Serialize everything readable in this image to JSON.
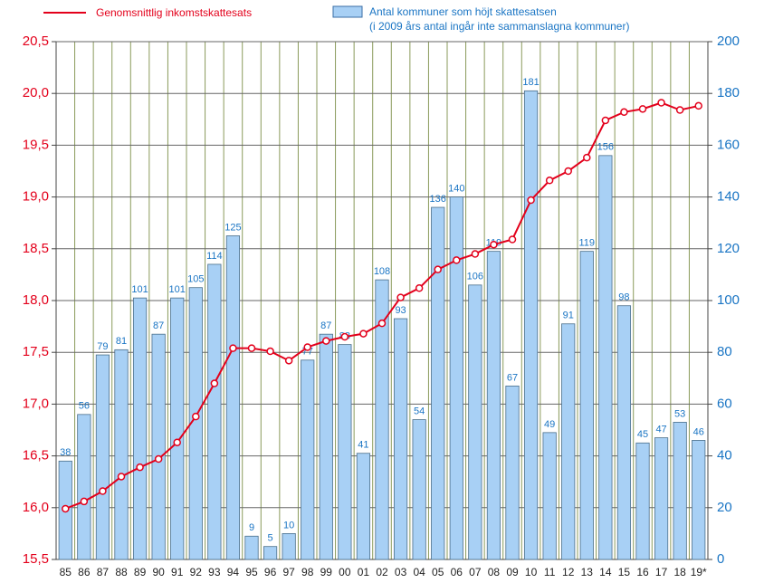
{
  "chart_data": {
    "type": "bar",
    "categories": [
      "85",
      "86",
      "87",
      "88",
      "89",
      "90",
      "91",
      "92",
      "93",
      "94",
      "95",
      "96",
      "97",
      "98",
      "99",
      "00",
      "01",
      "02",
      "03",
      "04",
      "05",
      "06",
      "07",
      "08",
      "09",
      "10",
      "11",
      "12",
      "13",
      "14",
      "15",
      "16",
      "17",
      "18",
      "19*"
    ],
    "series": [
      {
        "name": "Genomsnittlig inkomstskattesats",
        "type": "line",
        "axis": "y",
        "color": "#e3001b",
        "values": [
          15.99,
          16.06,
          16.16,
          16.3,
          16.39,
          16.47,
          16.63,
          16.88,
          17.2,
          17.54,
          17.54,
          17.51,
          17.42,
          17.55,
          17.61,
          17.65,
          17.68,
          17.78,
          18.03,
          18.12,
          18.3,
          18.39,
          18.45,
          18.54,
          18.59,
          18.97,
          19.16,
          19.25,
          19.38,
          19.74,
          19.82,
          19.85,
          19.91,
          19.84,
          19.88
        ]
      },
      {
        "name": "Antal kommuner som höjt skattesatsen",
        "type": "bar",
        "axis": "y2",
        "color": "#a8d0f5",
        "values": [
          38,
          56,
          79,
          81,
          101,
          87,
          101,
          105,
          114,
          125,
          9,
          5,
          10,
          77,
          87,
          83,
          41,
          108,
          93,
          54,
          136,
          140,
          106,
          119,
          67,
          181,
          49,
          91,
          119,
          156,
          98,
          45,
          47,
          53,
          46
        ]
      }
    ],
    "legend_note": "(i 2009 års antal ingår inte sammanslagna kommuner)",
    "ylim": [
      15.5,
      20.5
    ],
    "yticks": [
      {
        "value": 15.5,
        "label": "15,5"
      },
      {
        "value": 16.0,
        "label": "16,0"
      },
      {
        "value": 16.5,
        "label": "16,5"
      },
      {
        "value": 17.0,
        "label": "17,0"
      },
      {
        "value": 17.5,
        "label": "17,5"
      },
      {
        "value": 18.0,
        "label": "18,0"
      },
      {
        "value": 18.5,
        "label": "18,5"
      },
      {
        "value": 19.0,
        "label": "19,0"
      },
      {
        "value": 19.5,
        "label": "19,5"
      },
      {
        "value": 20.0,
        "label": "20,0"
      },
      {
        "value": 20.5,
        "label": "20,5"
      }
    ],
    "y2lim": [
      0,
      200
    ],
    "y2ticks": [
      0,
      20,
      40,
      60,
      80,
      100,
      120,
      140,
      160,
      180,
      200
    ],
    "grid": true
  }
}
